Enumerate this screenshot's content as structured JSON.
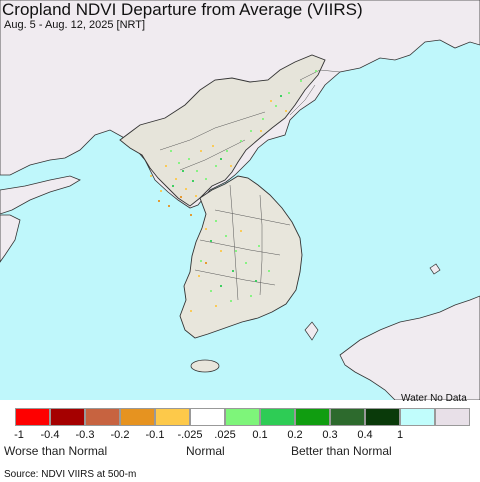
{
  "title": "Cropland NDVI Departure from Average (VIIRS)",
  "subtitle": "Aug. 5 - Aug. 12, 2025 [NRT]",
  "legend": {
    "header": "Water No Data",
    "swatch_colors": [
      "#fe0000",
      "#a50000",
      "#c76340",
      "#e69320",
      "#fdc94a",
      "#ffffff",
      "#7ef57a",
      "#2ecc55",
      "#109d10",
      "#2d6a2d",
      "#0a3a0a",
      "#c1fdfc",
      "#e8e0e8"
    ],
    "tick_labels": [
      "-1",
      "-0.4",
      "-0.3",
      "-0.2",
      "-0.1",
      "-.025",
      ".025",
      "0.1",
      "0.2",
      "0.3",
      "0.4",
      "1"
    ],
    "categories": [
      "Worse than Normal",
      "Normal",
      "Better than Normal"
    ]
  },
  "source": "Source: NDVI VIIRS at 500-m",
  "map_colors": {
    "water": "#bff7fb",
    "land": "#f0ebf0",
    "border": "#333333"
  }
}
